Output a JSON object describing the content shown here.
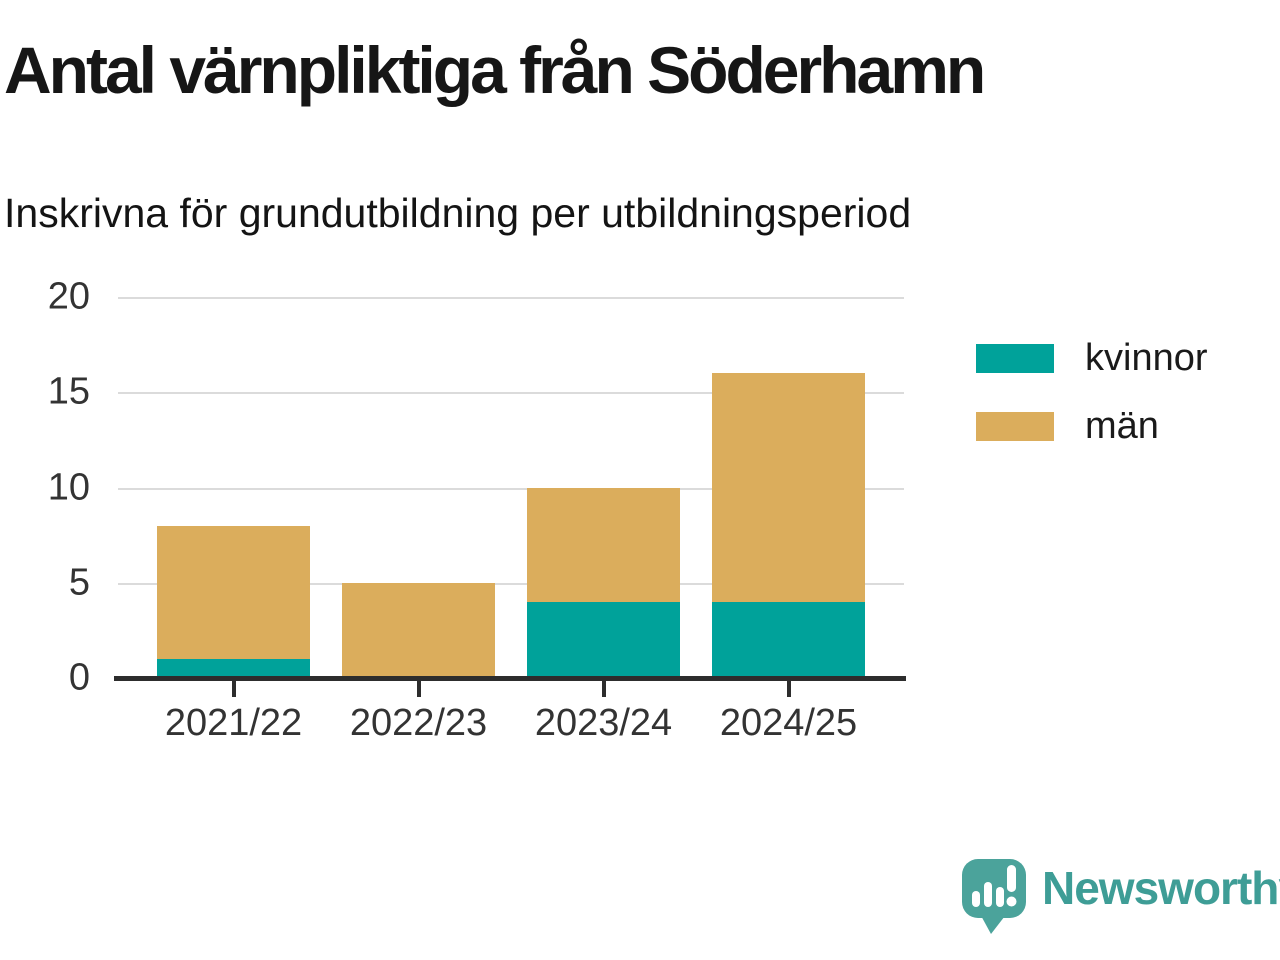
{
  "title": "Antal värnpliktiga från Söderhamn",
  "subtitle": "Inskrivna för grundutbildning per utbildningsperiod",
  "chart_data": {
    "type": "bar",
    "stacked": true,
    "title": "Antal värnpliktiga från Söderhamn",
    "subtitle": "Inskrivna för grundutbildning per utbildningsperiod",
    "categories": [
      "2021/22",
      "2022/23",
      "2023/24",
      "2024/25"
    ],
    "series": [
      {
        "name": "kvinnor",
        "color": "#00A29A",
        "values": [
          1,
          0,
          4,
          4
        ]
      },
      {
        "name": "män",
        "color": "#DBAD5C",
        "values": [
          7,
          5,
          6,
          12
        ]
      }
    ],
    "totals": [
      8,
      5,
      10,
      16
    ],
    "xlabel": "",
    "ylabel": "",
    "ylim": [
      0,
      20
    ],
    "yticks": [
      0,
      5,
      10,
      15,
      20
    ],
    "grid": "horizontal",
    "legend_position": "right"
  },
  "branding": {
    "logo_text": "Newsworthy",
    "logo_text_color": "#3E9D96",
    "logo_icon_color": "#4BA39B"
  },
  "colors": {
    "background": "#FFFFFF",
    "axis": "#2D2D2D",
    "gridline": "#DBDBDB",
    "tick_label": "#333333"
  }
}
